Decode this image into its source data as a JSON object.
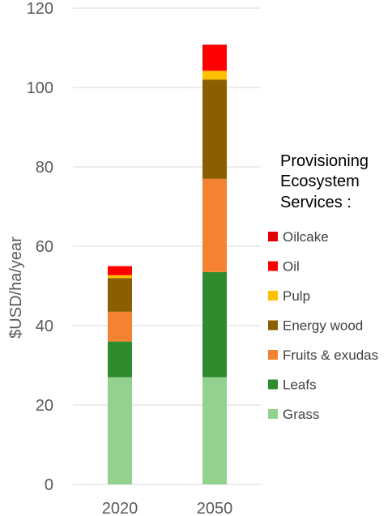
{
  "chart_data": {
    "type": "bar",
    "stacked": true,
    "categories": [
      "2020",
      "2050"
    ],
    "ylabel": "$USD/ha/year",
    "ylim": [
      0,
      120
    ],
    "yticks": [
      0,
      20,
      40,
      60,
      80,
      100,
      120
    ],
    "grid": true,
    "legend": {
      "title_lines": [
        "Provisioning",
        "Ecosystem",
        "Services :"
      ],
      "placement": "right"
    },
    "series": [
      {
        "name": "Grass",
        "color": "#93d18f",
        "values": [
          27,
          27
        ]
      },
      {
        "name": "Leafs",
        "color": "#2e8b2e",
        "values": [
          9,
          26.5
        ]
      },
      {
        "name": "Fruits & exudas",
        "color": "#f58231",
        "values": [
          7.5,
          23.5
        ]
      },
      {
        "name": "Energy wood",
        "color": "#8b5e00",
        "values": [
          8.5,
          25
        ]
      },
      {
        "name": "Pulp",
        "color": "#ffc000",
        "values": [
          0.7,
          2.2
        ]
      },
      {
        "name": "Oil",
        "color": "#ff0000",
        "values": [
          2.3,
          6.3
        ]
      },
      {
        "name": "Oilcake",
        "color": "#e00000",
        "values": [
          0,
          0.3
        ]
      }
    ]
  }
}
